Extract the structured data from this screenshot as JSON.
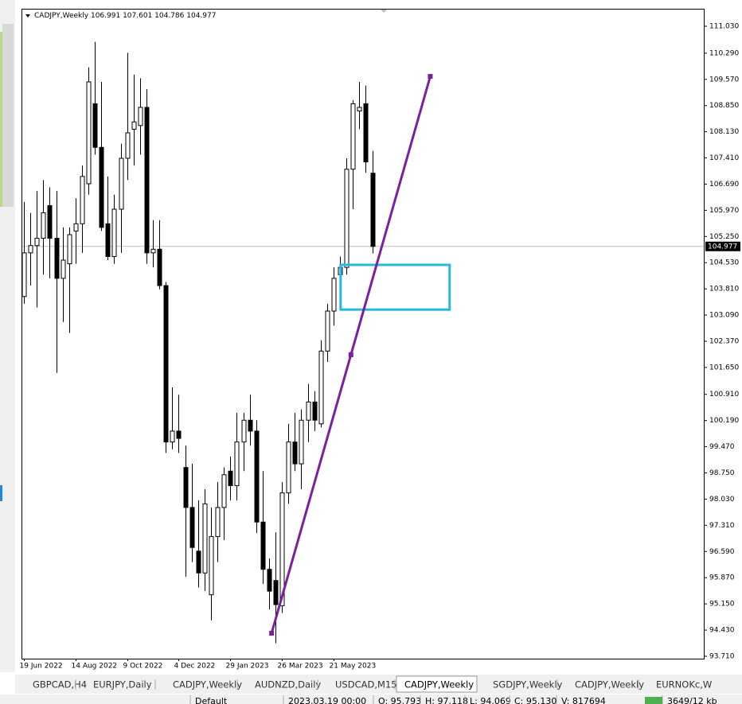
{
  "chart_data": {
    "type": "candlestick",
    "header": {
      "symbol": "CADJPY,Weekly",
      "ohlc": [
        106.991,
        107.601,
        104.786,
        104.977
      ]
    },
    "categories": [
      "19 Jun 2022",
      null,
      null,
      null,
      null,
      null,
      null,
      null,
      "14 Aug 2022",
      null,
      null,
      null,
      null,
      null,
      null,
      null,
      "9 Oct 2022",
      null,
      null,
      null,
      null,
      null,
      null,
      null,
      "4 Dec 2022",
      null,
      null,
      null,
      null,
      null,
      null,
      null,
      "29 Jan 2023",
      null,
      null,
      null,
      null,
      null,
      null,
      null,
      "26 Mar 2023",
      null,
      null,
      null,
      null,
      null,
      null,
      null,
      "21 May 2023",
      null,
      null,
      null,
      null,
      null,
      null
    ],
    "open": [
      103.6,
      104.8,
      105.0,
      105.2,
      106.1,
      105.2,
      104.1,
      104.5,
      105.4,
      105.6,
      106.7,
      108.9,
      107.7,
      105.6,
      104.7,
      106.0,
      107.4,
      108.2,
      108.3,
      108.8,
      104.8,
      104.9,
      103.9,
      99.6,
      99.9,
      98.9,
      97.8,
      96.6,
      96.0,
      95.4,
      97.0,
      97.8,
      98.8,
      98.4,
      99.6,
      100.2,
      99.9,
      97.4,
      96.1,
      95.793,
      95.1,
      98.2,
      99.6,
      99.0,
      100.2,
      100.7,
      100.1,
      102.1,
      103.2,
      104.2,
      104.4,
      107.1,
      108.7,
      108.9,
      106.991
    ],
    "high": [
      106.2,
      105.9,
      106.5,
      106.8,
      106.6,
      106.5,
      105.5,
      105.5,
      106.3,
      107.2,
      109.9,
      110.6,
      109.5,
      106.9,
      106.4,
      107.8,
      110.3,
      109.7,
      109.6,
      109.3,
      105.7,
      105.7,
      104.0,
      101.1,
      100.9,
      99.5,
      99.0,
      98.0,
      98.3,
      97.8,
      98.5,
      98.9,
      99.2,
      100.4,
      100.4,
      100.9,
      100.2,
      98.8,
      96.4,
      97.118,
      98.5,
      100.1,
      100.4,
      100.5,
      101.2,
      101.0,
      102.4,
      103.4,
      104.4,
      104.7,
      107.4,
      109.0,
      109.5,
      109.4,
      107.601
    ],
    "low": [
      103.4,
      103.9,
      103.3,
      104.2,
      104.1,
      101.5,
      102.9,
      102.6,
      104.5,
      104.8,
      106.4,
      107.5,
      105.4,
      104.6,
      104.5,
      104.8,
      106.8,
      107.2,
      107.5,
      104.5,
      104.4,
      103.8,
      99.3,
      99.4,
      99.3,
      95.9,
      96.3,
      95.6,
      95.5,
      94.7,
      96.3,
      96.9,
      98.0,
      98.0,
      98.8,
      99.5,
      97.1,
      95.7,
      95.0,
      94.069,
      94.9,
      97.9,
      98.8,
      98.3,
      99.6,
      99.9,
      100.0,
      101.8,
      102.8,
      103.9,
      104.2,
      106.0,
      108.2,
      107.0,
      104.786
    ],
    "close": [
      104.8,
      105.0,
      105.2,
      105.9,
      105.2,
      104.1,
      104.6,
      105.3,
      105.6,
      106.9,
      109.5,
      107.7,
      105.5,
      104.7,
      106.0,
      107.4,
      108.1,
      108.4,
      108.8,
      104.8,
      104.9,
      103.9,
      99.6,
      99.9,
      99.7,
      97.8,
      96.7,
      96.0,
      97.9,
      97.0,
      97.8,
      98.7,
      98.4,
      99.6,
      100.2,
      99.9,
      97.4,
      96.1,
      95.5,
      95.13,
      98.2,
      99.6,
      99.0,
      100.2,
      100.7,
      100.2,
      102.1,
      103.2,
      104.1,
      104.4,
      107.1,
      108.9,
      108.8,
      107.3,
      104.977
    ],
    "last_price": 104.977,
    "xlim": [
      -0.25,
      105.4
    ],
    "ylim": [
      93.644,
      111.489
    ],
    "yticks": [
      {
        "value": 111.03,
        "label": "111.030"
      },
      {
        "value": 110.29,
        "label": "110.290"
      },
      {
        "value": 109.57,
        "label": "109.570"
      },
      {
        "value": 108.85,
        "label": "108.850"
      },
      {
        "value": 108.13,
        "label": "108.130"
      },
      {
        "value": 107.41,
        "label": "107.410"
      },
      {
        "value": 106.69,
        "label": "106.690"
      },
      {
        "value": 105.97,
        "label": "105.970"
      },
      {
        "value": 105.25,
        "label": "105.250"
      },
      {
        "value": 104.53,
        "label": "104.530"
      },
      {
        "value": 103.81,
        "label": "103.810"
      },
      {
        "value": 103.09,
        "label": "103.090"
      },
      {
        "value": 102.37,
        "label": "102.370"
      },
      {
        "value": 101.65,
        "label": "101.650"
      },
      {
        "value": 100.91,
        "label": "100.910"
      },
      {
        "value": 100.19,
        "label": "100.190"
      },
      {
        "value": 99.47,
        "label": "99.470"
      },
      {
        "value": 98.75,
        "label": "98.750"
      },
      {
        "value": 98.03,
        "label": "98.030"
      },
      {
        "value": 97.31,
        "label": "97.310"
      },
      {
        "value": 96.59,
        "label": "96.590"
      },
      {
        "value": 95.87,
        "label": "95.870"
      },
      {
        "value": 95.15,
        "label": "95.150"
      },
      {
        "value": 94.43,
        "label": "94.430"
      },
      {
        "value": 93.71,
        "label": "93.710"
      }
    ],
    "up_color": "#ffffff",
    "down_color": "#000000",
    "trendline": {
      "color": "#7b1fa2",
      "x": [
        38.4,
        50.7,
        63.0
      ],
      "y": [
        94.344,
        102.0,
        109.652
      ]
    },
    "rectangle": {
      "color": "#29b6e0",
      "x": [
        49.1,
        66.0
      ],
      "y": [
        104.47,
        103.24
      ]
    }
  },
  "tabs": [
    "GBPCAD,H4",
    "EURJPY,Daily",
    "CADJPY,Weekly",
    "AUDNZD,Daily",
    "USDCAD,M15",
    "CADJPY,Weekly",
    "SGDJPY,Weekly",
    "CADJPY,Weekly",
    "EURNOKc,W"
  ],
  "active_tab": 5,
  "status": [
    "Default",
    "2023.03.19 00:00",
    "O: 95.793",
    "H: 97.118",
    "L: 94.069",
    "C: 95.130",
    "V: 817694",
    "3649/12 kb"
  ]
}
